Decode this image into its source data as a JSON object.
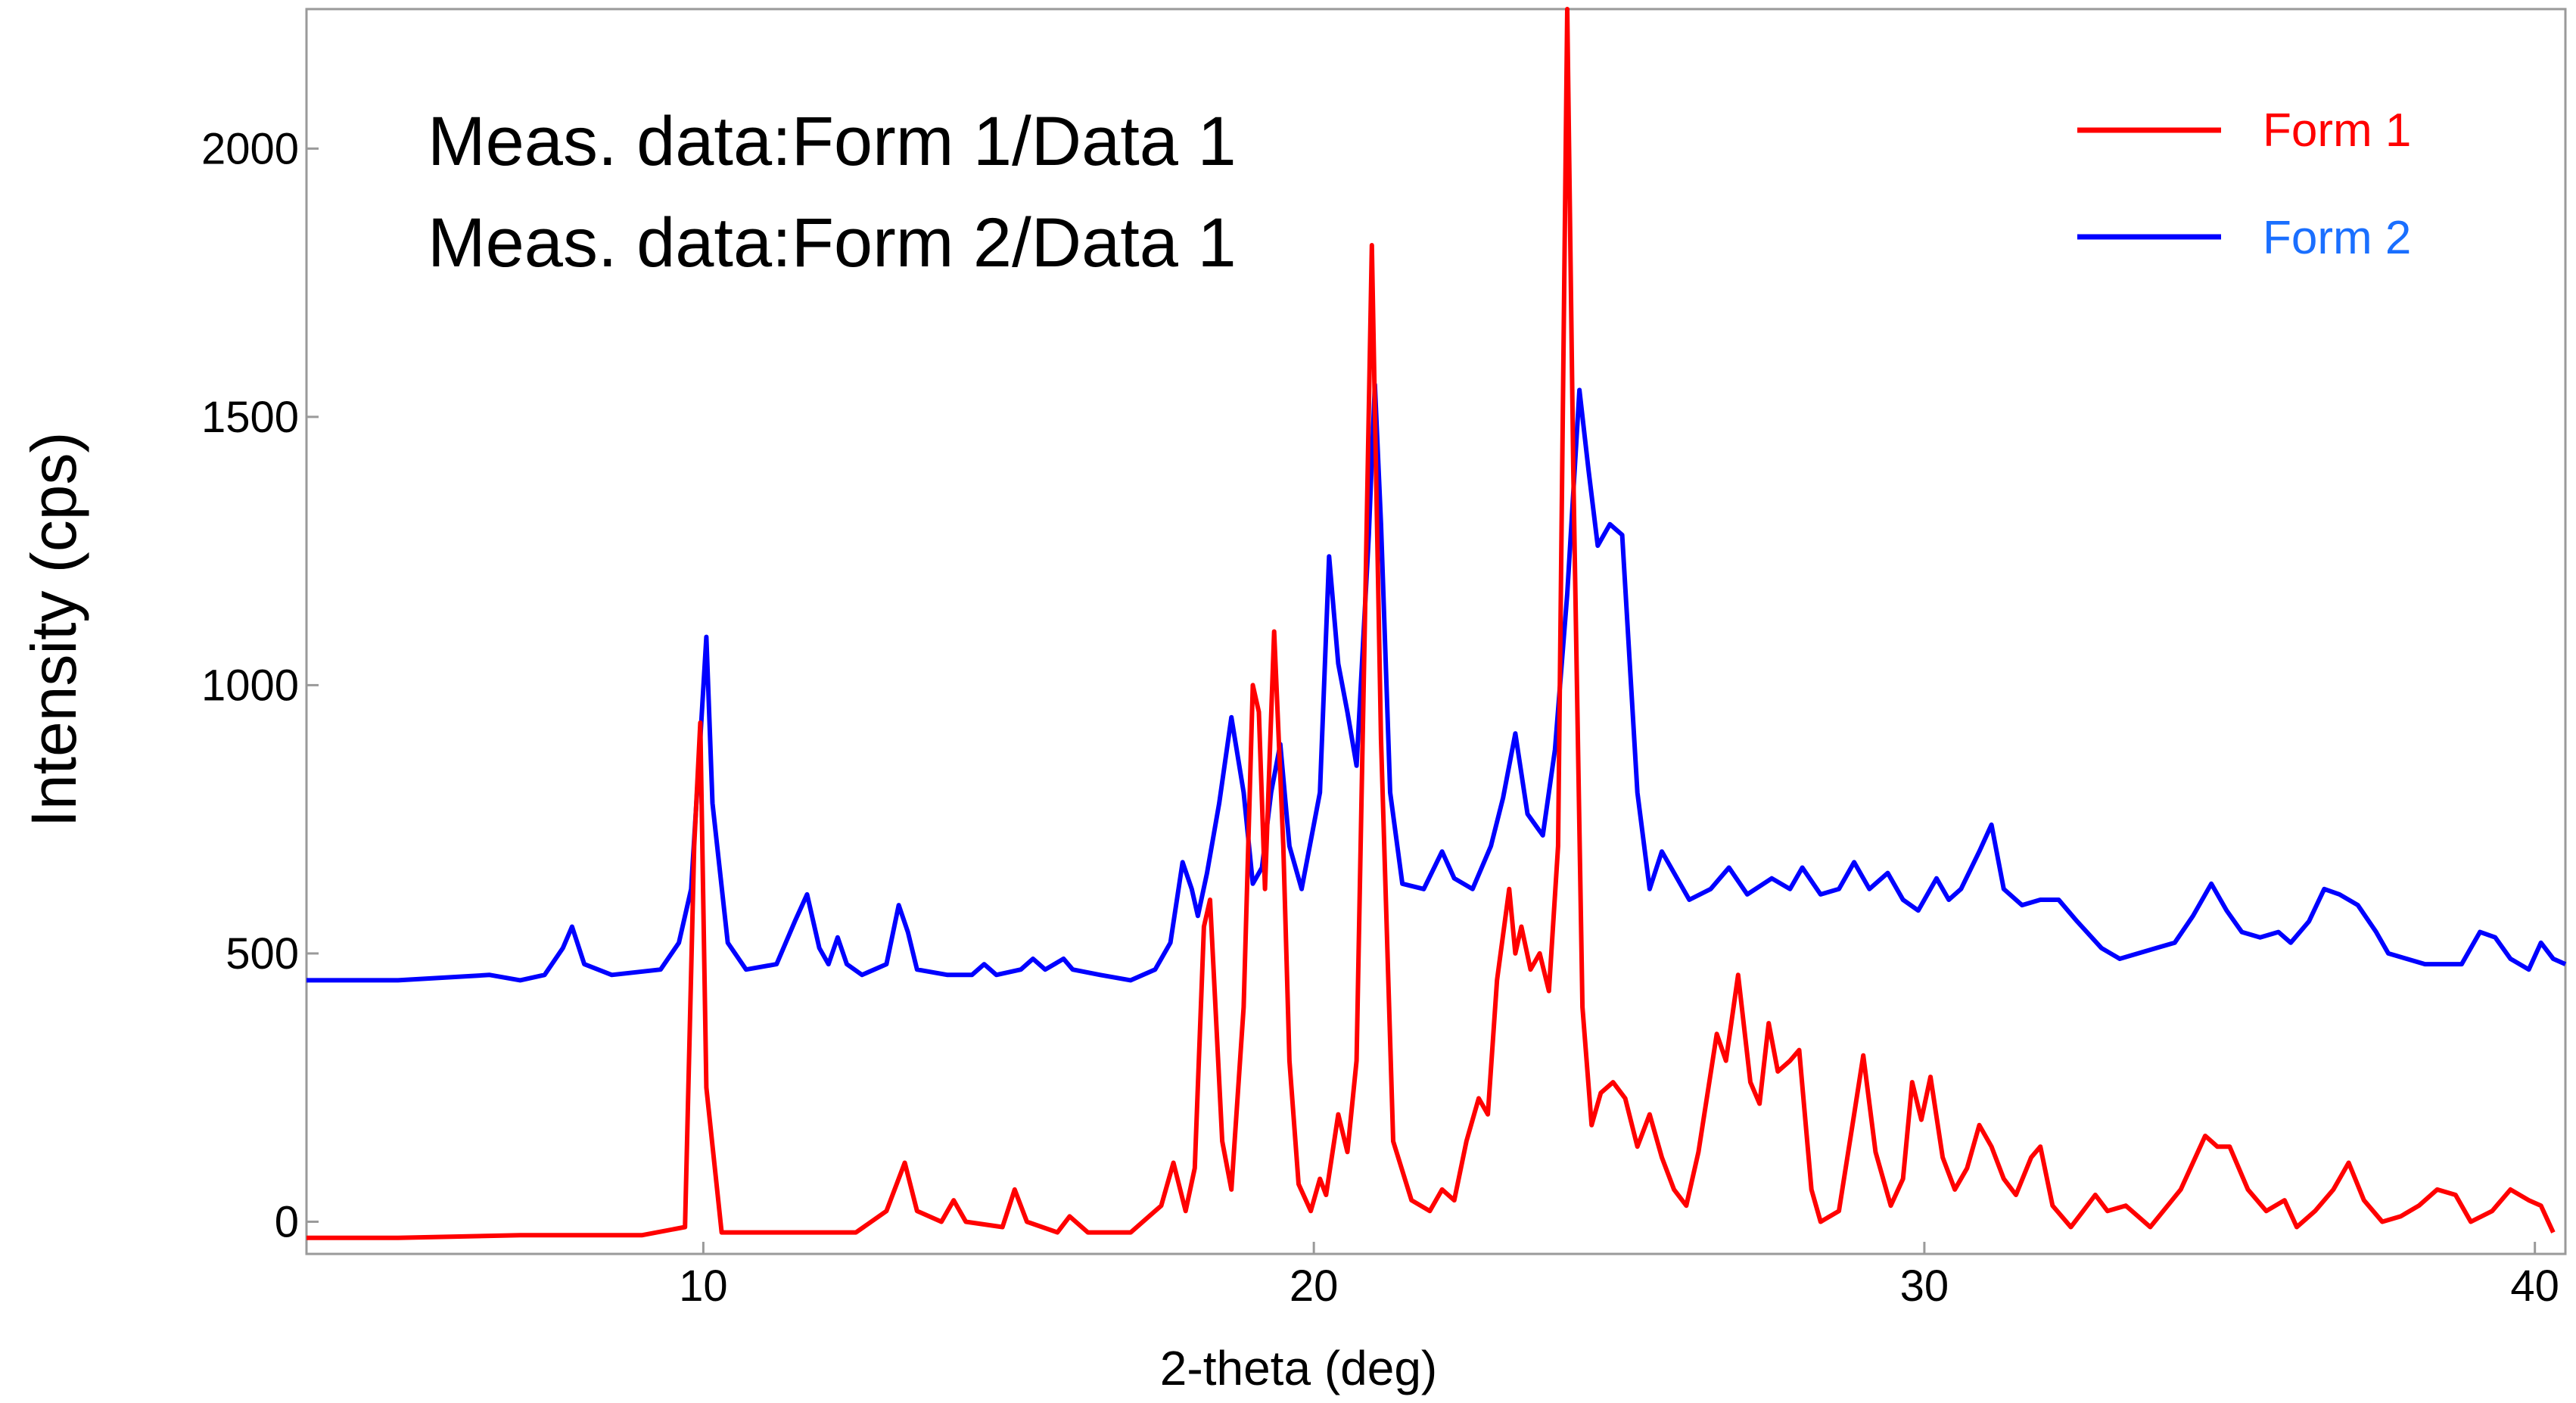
{
  "chart_data": {
    "type": "line",
    "xlabel": "2-theta (deg)",
    "ylabel": "Intensity (cps)",
    "xlim": [
      3.5,
      40.5
    ],
    "ylim": [
      -60,
      2260
    ],
    "x_ticks": [
      10,
      20,
      30,
      40
    ],
    "y_ticks": [
      0,
      500,
      1000,
      1500,
      2000
    ],
    "grid": false,
    "legend_position": "top-right",
    "annotations": [
      "Meas. data:Form 1/Data 1",
      "Meas. data:Form 2/Data 1"
    ],
    "series": [
      {
        "name": "Form 1",
        "color": "#ff0000",
        "points": [
          [
            3.5,
            -30
          ],
          [
            5,
            -30
          ],
          [
            7,
            -25
          ],
          [
            9,
            -25
          ],
          [
            9.7,
            -10
          ],
          [
            9.85,
            700
          ],
          [
            9.95,
            930
          ],
          [
            10.05,
            250
          ],
          [
            10.3,
            -20
          ],
          [
            12.5,
            -20
          ],
          [
            13,
            20
          ],
          [
            13.3,
            110
          ],
          [
            13.5,
            20
          ],
          [
            13.9,
            0
          ],
          [
            14.1,
            40
          ],
          [
            14.3,
            0
          ],
          [
            14.9,
            -10
          ],
          [
            15.1,
            60
          ],
          [
            15.3,
            0
          ],
          [
            15.8,
            -20
          ],
          [
            16,
            10
          ],
          [
            16.3,
            -20
          ],
          [
            17,
            -20
          ],
          [
            17.5,
            30
          ],
          [
            17.7,
            110
          ],
          [
            17.9,
            20
          ],
          [
            18.05,
            100
          ],
          [
            18.2,
            550
          ],
          [
            18.3,
            600
          ],
          [
            18.5,
            150
          ],
          [
            18.65,
            60
          ],
          [
            18.85,
            400
          ],
          [
            19,
            1000
          ],
          [
            19.1,
            950
          ],
          [
            19.2,
            620
          ],
          [
            19.35,
            1100
          ],
          [
            19.5,
            700
          ],
          [
            19.6,
            300
          ],
          [
            19.75,
            70
          ],
          [
            19.95,
            20
          ],
          [
            20.1,
            80
          ],
          [
            20.2,
            50
          ],
          [
            20.4,
            200
          ],
          [
            20.55,
            130
          ],
          [
            20.7,
            300
          ],
          [
            20.85,
            1200
          ],
          [
            20.95,
            1820
          ],
          [
            21.1,
            900
          ],
          [
            21.3,
            150
          ],
          [
            21.6,
            40
          ],
          [
            21.9,
            20
          ],
          [
            22.1,
            60
          ],
          [
            22.3,
            40
          ],
          [
            22.5,
            150
          ],
          [
            22.7,
            230
          ],
          [
            22.85,
            200
          ],
          [
            23,
            450
          ],
          [
            23.2,
            620
          ],
          [
            23.3,
            500
          ],
          [
            23.4,
            550
          ],
          [
            23.55,
            470
          ],
          [
            23.7,
            500
          ],
          [
            23.85,
            430
          ],
          [
            24,
            700
          ],
          [
            24.15,
            2260
          ],
          [
            24.25,
            1400
          ],
          [
            24.4,
            400
          ],
          [
            24.55,
            180
          ],
          [
            24.7,
            240
          ],
          [
            24.9,
            260
          ],
          [
            25.1,
            230
          ],
          [
            25.3,
            140
          ],
          [
            25.5,
            200
          ],
          [
            25.7,
            120
          ],
          [
            25.9,
            60
          ],
          [
            26.1,
            30
          ],
          [
            26.3,
            130
          ],
          [
            26.6,
            350
          ],
          [
            26.75,
            300
          ],
          [
            26.95,
            460
          ],
          [
            27.15,
            260
          ],
          [
            27.3,
            220
          ],
          [
            27.45,
            370
          ],
          [
            27.6,
            280
          ],
          [
            27.8,
            300
          ],
          [
            27.95,
            320
          ],
          [
            28.15,
            60
          ],
          [
            28.3,
            0
          ],
          [
            28.6,
            20
          ],
          [
            28.85,
            200
          ],
          [
            29,
            310
          ],
          [
            29.2,
            130
          ],
          [
            29.45,
            30
          ],
          [
            29.65,
            80
          ],
          [
            29.8,
            260
          ],
          [
            29.95,
            190
          ],
          [
            30.1,
            270
          ],
          [
            30.3,
            120
          ],
          [
            30.5,
            60
          ],
          [
            30.7,
            100
          ],
          [
            30.9,
            180
          ],
          [
            31.1,
            140
          ],
          [
            31.3,
            80
          ],
          [
            31.5,
            50
          ],
          [
            31.75,
            120
          ],
          [
            31.9,
            140
          ],
          [
            32.1,
            30
          ],
          [
            32.4,
            -10
          ],
          [
            32.6,
            20
          ],
          [
            32.8,
            50
          ],
          [
            33,
            20
          ],
          [
            33.3,
            30
          ],
          [
            33.5,
            10
          ],
          [
            33.7,
            -10
          ],
          [
            34.2,
            60
          ],
          [
            34.6,
            160
          ],
          [
            34.8,
            140
          ],
          [
            35,
            140
          ],
          [
            35.3,
            60
          ],
          [
            35.6,
            20
          ],
          [
            35.9,
            40
          ],
          [
            36.1,
            -10
          ],
          [
            36.4,
            20
          ],
          [
            36.7,
            60
          ],
          [
            36.95,
            110
          ],
          [
            37.2,
            40
          ],
          [
            37.5,
            0
          ],
          [
            37.8,
            10
          ],
          [
            38.1,
            30
          ],
          [
            38.4,
            60
          ],
          [
            38.7,
            50
          ],
          [
            38.95,
            0
          ],
          [
            39.3,
            20
          ],
          [
            39.6,
            60
          ],
          [
            39.9,
            40
          ],
          [
            40.1,
            30
          ],
          [
            40.3,
            -20
          ]
        ]
      },
      {
        "name": "Form 2",
        "color": "#0000ff",
        "points": [
          [
            3.5,
            450
          ],
          [
            5,
            450
          ],
          [
            6.5,
            460
          ],
          [
            7,
            450
          ],
          [
            7.4,
            460
          ],
          [
            7.7,
            510
          ],
          [
            7.85,
            550
          ],
          [
            8.05,
            480
          ],
          [
            8.5,
            460
          ],
          [
            9.3,
            470
          ],
          [
            9.6,
            520
          ],
          [
            9.8,
            620
          ],
          [
            9.95,
            900
          ],
          [
            10.05,
            1090
          ],
          [
            10.15,
            780
          ],
          [
            10.4,
            520
          ],
          [
            10.7,
            470
          ],
          [
            11.2,
            480
          ],
          [
            11.5,
            560
          ],
          [
            11.7,
            610
          ],
          [
            11.9,
            510
          ],
          [
            12.05,
            480
          ],
          [
            12.2,
            530
          ],
          [
            12.35,
            480
          ],
          [
            12.6,
            460
          ],
          [
            13,
            480
          ],
          [
            13.2,
            590
          ],
          [
            13.35,
            540
          ],
          [
            13.5,
            470
          ],
          [
            14,
            460
          ],
          [
            14.4,
            460
          ],
          [
            14.6,
            480
          ],
          [
            14.8,
            460
          ],
          [
            15.2,
            470
          ],
          [
            15.4,
            490
          ],
          [
            15.6,
            470
          ],
          [
            15.9,
            490
          ],
          [
            16.05,
            470
          ],
          [
            16.5,
            460
          ],
          [
            17,
            450
          ],
          [
            17.4,
            470
          ],
          [
            17.65,
            520
          ],
          [
            17.85,
            670
          ],
          [
            18,
            620
          ],
          [
            18.1,
            570
          ],
          [
            18.25,
            650
          ],
          [
            18.45,
            780
          ],
          [
            18.65,
            940
          ],
          [
            18.85,
            800
          ],
          [
            19.0,
            630
          ],
          [
            19.15,
            660
          ],
          [
            19.3,
            800
          ],
          [
            19.45,
            890
          ],
          [
            19.6,
            700
          ],
          [
            19.8,
            620
          ],
          [
            20.1,
            800
          ],
          [
            20.25,
            1240
          ],
          [
            20.4,
            1040
          ],
          [
            20.55,
            950
          ],
          [
            20.7,
            850
          ],
          [
            20.9,
            1280
          ],
          [
            21.0,
            1560
          ],
          [
            21.1,
            1300
          ],
          [
            21.25,
            800
          ],
          [
            21.45,
            630
          ],
          [
            21.8,
            620
          ],
          [
            22.1,
            690
          ],
          [
            22.3,
            640
          ],
          [
            22.6,
            620
          ],
          [
            22.9,
            700
          ],
          [
            23.1,
            790
          ],
          [
            23.3,
            910
          ],
          [
            23.5,
            760
          ],
          [
            23.75,
            720
          ],
          [
            23.95,
            880
          ],
          [
            24.15,
            1170
          ],
          [
            24.35,
            1550
          ],
          [
            24.5,
            1400
          ],
          [
            24.65,
            1260
          ],
          [
            24.85,
            1300
          ],
          [
            25.05,
            1280
          ],
          [
            25.3,
            800
          ],
          [
            25.5,
            620
          ],
          [
            25.7,
            690
          ],
          [
            25.95,
            640
          ],
          [
            26.15,
            600
          ],
          [
            26.5,
            620
          ],
          [
            26.8,
            660
          ],
          [
            27.1,
            610
          ],
          [
            27.5,
            640
          ],
          [
            27.8,
            620
          ],
          [
            28,
            660
          ],
          [
            28.3,
            610
          ],
          [
            28.6,
            620
          ],
          [
            28.85,
            670
          ],
          [
            29.1,
            620
          ],
          [
            29.4,
            650
          ],
          [
            29.65,
            600
          ],
          [
            29.9,
            580
          ],
          [
            30.2,
            640
          ],
          [
            30.4,
            600
          ],
          [
            30.6,
            620
          ],
          [
            30.9,
            690
          ],
          [
            31.1,
            740
          ],
          [
            31.3,
            620
          ],
          [
            31.6,
            590
          ],
          [
            31.9,
            600
          ],
          [
            32.2,
            600
          ],
          [
            32.5,
            560
          ],
          [
            32.9,
            510
          ],
          [
            33.2,
            490
          ],
          [
            33.5,
            500
          ],
          [
            33.8,
            510
          ],
          [
            34.1,
            520
          ],
          [
            34.4,
            570
          ],
          [
            34.7,
            630
          ],
          [
            34.95,
            580
          ],
          [
            35.2,
            540
          ],
          [
            35.5,
            530
          ],
          [
            35.8,
            540
          ],
          [
            36,
            520
          ],
          [
            36.3,
            560
          ],
          [
            36.55,
            620
          ],
          [
            36.8,
            610
          ],
          [
            37.1,
            590
          ],
          [
            37.4,
            540
          ],
          [
            37.6,
            500
          ],
          [
            37.9,
            490
          ],
          [
            38.2,
            480
          ],
          [
            38.5,
            480
          ],
          [
            38.8,
            480
          ],
          [
            39.1,
            540
          ],
          [
            39.35,
            530
          ],
          [
            39.6,
            490
          ],
          [
            39.9,
            470
          ],
          [
            40.1,
            520
          ],
          [
            40.3,
            490
          ],
          [
            40.5,
            480
          ]
        ]
      }
    ]
  }
}
